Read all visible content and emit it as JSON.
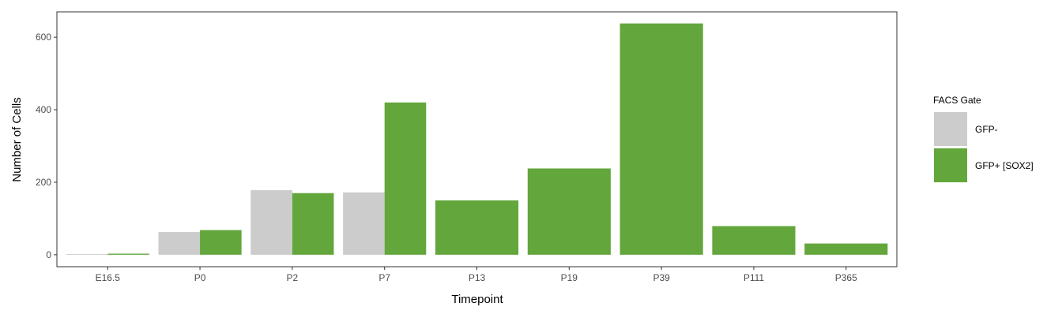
{
  "chart_data": {
    "type": "bar",
    "categories": [
      "E16.5",
      "P0",
      "P2",
      "P7",
      "P13",
      "P19",
      "P39",
      "P111",
      "P365"
    ],
    "series": [
      {
        "name": "GFP-",
        "color": "#cccccc",
        "values": [
          2,
          63,
          178,
          172,
          null,
          null,
          null,
          null,
          null
        ]
      },
      {
        "name": "GFP+ [SOX2]",
        "color": "#63a63c",
        "values": [
          3,
          68,
          170,
          420,
          150,
          238,
          638,
          79,
          31
        ]
      }
    ],
    "xlabel": "Timepoint",
    "ylabel": "Number of Cells",
    "ylim": [
      -33,
      670
    ],
    "yticks": [
      0,
      200,
      400,
      600
    ],
    "legend": {
      "title": "FACS Gate",
      "position": "right"
    },
    "grid": false
  }
}
